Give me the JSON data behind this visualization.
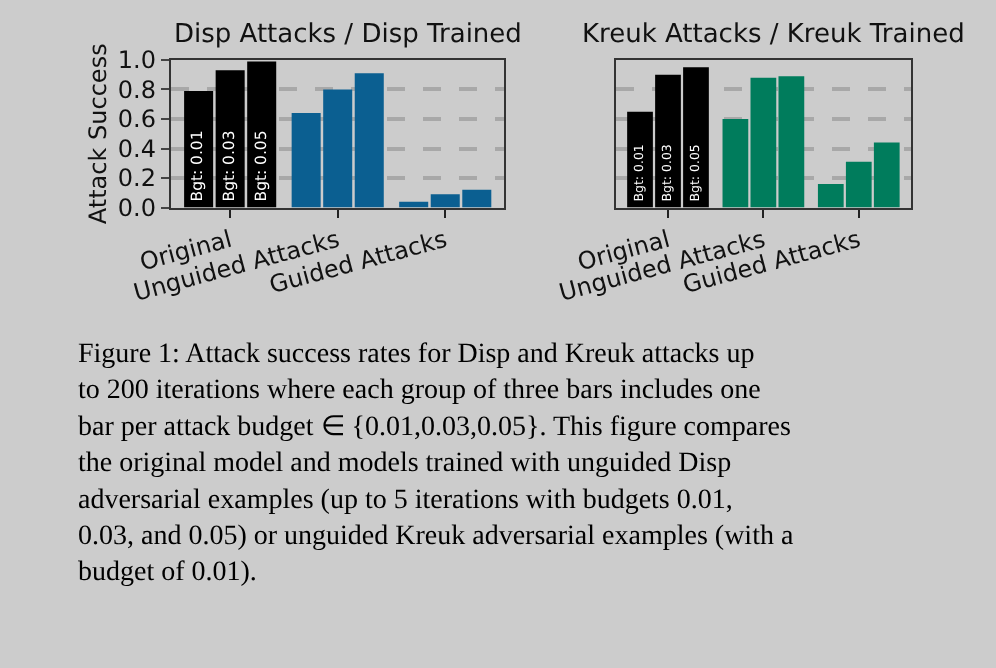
{
  "chart_data": [
    {
      "type": "bar",
      "title": "Disp Attacks / Disp Trained",
      "ylabel": "Attack Success",
      "categories": [
        "Original",
        "Unguided Attacks",
        "Guided Attacks"
      ],
      "series": [
        {
          "name": "Bgt: 0.01",
          "colors": [
            "#000000",
            "#0b5f91",
            "#0b5f91"
          ],
          "values": [
            0.79,
            0.64,
            0.04
          ]
        },
        {
          "name": "Bgt: 0.03",
          "colors": [
            "#000000",
            "#0b5f91",
            "#0b5f91"
          ],
          "values": [
            0.93,
            0.8,
            0.09
          ]
        },
        {
          "name": "Bgt: 0.05",
          "colors": [
            "#000000",
            "#0b5f91",
            "#0b5f91"
          ],
          "values": [
            0.99,
            0.91,
            0.12
          ]
        }
      ],
      "ylim": [
        0,
        1
      ],
      "yticks": [
        {
          "value": 0,
          "label": "0.0"
        },
        0.2,
        0.4,
        0.6,
        0.8,
        {
          "value": 1,
          "label": "1.0"
        }
      ],
      "grid": "y",
      "annotations": [
        "Figure 1: Attack success rates for Disp and Kreuk attacks up to 200 iterations where each group of three bars includes one bar per attack budget ∈ {0.01,0.03,0.05}. This figure compares the original model and models trained with unguided Disp adversarial examples (up to 5 iterations with budgets 0.01, 0.03, and 0.05) or unguided Kreuk adversarial examples (with a budget of 0.01)."
      ]
    },
    {
      "type": "bar",
      "title": "Kreuk Attacks / Kreuk Trained",
      "categories": [
        "Original",
        "Unguided Attacks",
        "Guided Attacks"
      ],
      "series": [
        {
          "name": "Bgt: 0.01",
          "colors": [
            "#000000",
            "#007c5c",
            "#007c5c"
          ],
          "values": [
            0.65,
            0.6,
            0.16
          ]
        },
        {
          "name": "Bgt: 0.03",
          "colors": [
            "#000000",
            "#007c5c",
            "#007c5c"
          ],
          "values": [
            0.9,
            0.88,
            0.31
          ]
        },
        {
          "name": "Bgt: 0.05",
          "colors": [
            "#000000",
            "#007c5c",
            "#007c5c"
          ],
          "values": [
            0.95,
            0.89,
            0.44
          ]
        }
      ],
      "ylim": [
        0,
        1
      ],
      "yticks": [
        0.0,
        0.2,
        0.4,
        0.6,
        0.8,
        1.0
      ],
      "grid": "y",
      "tick_labels": "x"
    }
  ]
}
